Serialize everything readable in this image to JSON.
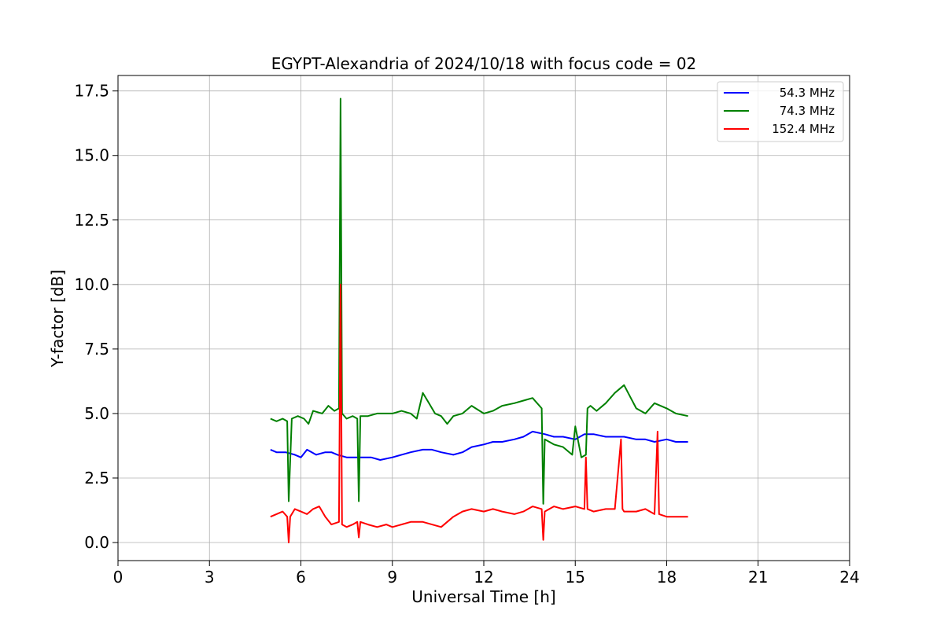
{
  "chart_data": {
    "type": "line",
    "title": "EGYPT-Alexandria of 2024/10/18 with focus code = 02",
    "xlabel": "Universal Time [h]",
    "ylabel": "Y-factor [dB]",
    "xlim": [
      0,
      24
    ],
    "ylim": [
      -0.7,
      18.1
    ],
    "xticks": [
      0,
      3,
      6,
      9,
      12,
      15,
      18,
      21,
      24
    ],
    "xtick_labels": [
      "0",
      "3",
      "6",
      "9",
      "12",
      "15",
      "18",
      "21",
      "24"
    ],
    "yticks": [
      0,
      2.5,
      5,
      7.5,
      10,
      12.5,
      15,
      17.5
    ],
    "ytick_labels": [
      "0.0",
      "2.5",
      "5.0",
      "7.5",
      "10.0",
      "12.5",
      "15.0",
      "17.5"
    ],
    "grid": true,
    "legend_position": "top-right",
    "series": [
      {
        "name": "54.3 MHz",
        "color": "#0000ff",
        "x": [
          5.0,
          5.2,
          5.5,
          5.8,
          6.0,
          6.2,
          6.5,
          6.8,
          7.0,
          7.2,
          7.5,
          7.8,
          8.0,
          8.3,
          8.6,
          9.0,
          9.3,
          9.6,
          10.0,
          10.3,
          10.6,
          11.0,
          11.3,
          11.6,
          12.0,
          12.3,
          12.6,
          13.0,
          13.3,
          13.6,
          14.0,
          14.3,
          14.6,
          15.0,
          15.3,
          15.6,
          16.0,
          16.3,
          16.6,
          17.0,
          17.3,
          17.6,
          18.0,
          18.3,
          18.7
        ],
        "y": [
          3.6,
          3.5,
          3.5,
          3.4,
          3.3,
          3.6,
          3.4,
          3.5,
          3.5,
          3.4,
          3.3,
          3.3,
          3.3,
          3.3,
          3.2,
          3.3,
          3.4,
          3.5,
          3.6,
          3.6,
          3.5,
          3.4,
          3.5,
          3.7,
          3.8,
          3.9,
          3.9,
          4.0,
          4.1,
          4.3,
          4.2,
          4.1,
          4.1,
          4.0,
          4.2,
          4.2,
          4.1,
          4.1,
          4.1,
          4.0,
          4.0,
          3.9,
          4.0,
          3.9,
          3.9
        ]
      },
      {
        "name": "74.3 MHz",
        "color": "#008000",
        "x": [
          5.0,
          5.2,
          5.4,
          5.55,
          5.6,
          5.7,
          5.9,
          6.1,
          6.25,
          6.4,
          6.7,
          6.9,
          7.1,
          7.25,
          7.3,
          7.35,
          7.5,
          7.7,
          7.85,
          7.9,
          7.95,
          8.2,
          8.5,
          8.8,
          9.0,
          9.3,
          9.6,
          9.8,
          10.0,
          10.2,
          10.4,
          10.6,
          10.8,
          11.0,
          11.3,
          11.6,
          12.0,
          12.3,
          12.6,
          13.0,
          13.3,
          13.6,
          13.9,
          13.95,
          14.0,
          14.3,
          14.6,
          14.9,
          15.0,
          15.2,
          15.35,
          15.4,
          15.5,
          15.7,
          16.0,
          16.3,
          16.6,
          17.0,
          17.3,
          17.6,
          18.0,
          18.3,
          18.7
        ],
        "y": [
          4.8,
          4.7,
          4.8,
          4.7,
          1.6,
          4.8,
          4.9,
          4.8,
          4.6,
          5.1,
          5.0,
          5.3,
          5.1,
          5.2,
          17.2,
          5.0,
          4.8,
          4.9,
          4.8,
          1.6,
          4.9,
          4.9,
          5.0,
          5.0,
          5.0,
          5.1,
          5.0,
          4.8,
          5.8,
          5.4,
          5.0,
          4.9,
          4.6,
          4.9,
          5.0,
          5.3,
          5.0,
          5.1,
          5.3,
          5.4,
          5.5,
          5.6,
          5.2,
          1.5,
          4.0,
          3.8,
          3.7,
          3.4,
          4.5,
          3.3,
          3.4,
          5.2,
          5.3,
          5.1,
          5.4,
          5.8,
          6.1,
          5.2,
          5.0,
          5.4,
          5.2,
          5.0,
          4.9
        ]
      },
      {
        "name": "152.4 MHz",
        "color": "#ff0000",
        "x": [
          5.0,
          5.2,
          5.4,
          5.55,
          5.6,
          5.65,
          5.8,
          6.0,
          6.2,
          6.4,
          6.6,
          6.8,
          7.0,
          7.25,
          7.3,
          7.35,
          7.5,
          7.7,
          7.85,
          7.9,
          7.95,
          8.2,
          8.5,
          8.8,
          9.0,
          9.3,
          9.6,
          10.0,
          10.3,
          10.6,
          11.0,
          11.3,
          11.6,
          12.0,
          12.3,
          12.6,
          13.0,
          13.3,
          13.6,
          13.9,
          13.95,
          14.0,
          14.3,
          14.6,
          15.0,
          15.3,
          15.35,
          15.4,
          15.6,
          16.0,
          16.3,
          16.5,
          16.55,
          16.6,
          17.0,
          17.3,
          17.6,
          17.7,
          17.75,
          18.0,
          18.3,
          18.7
        ],
        "y": [
          1.0,
          1.1,
          1.2,
          1.0,
          0.0,
          1.0,
          1.3,
          1.2,
          1.1,
          1.3,
          1.4,
          1.0,
          0.7,
          0.8,
          10.0,
          0.7,
          0.6,
          0.7,
          0.8,
          0.2,
          0.8,
          0.7,
          0.6,
          0.7,
          0.6,
          0.7,
          0.8,
          0.8,
          0.7,
          0.6,
          1.0,
          1.2,
          1.3,
          1.2,
          1.3,
          1.2,
          1.1,
          1.2,
          1.4,
          1.3,
          0.1,
          1.2,
          1.4,
          1.3,
          1.4,
          1.3,
          3.3,
          1.3,
          1.2,
          1.3,
          1.3,
          4.0,
          1.3,
          1.2,
          1.2,
          1.3,
          1.1,
          4.3,
          1.1,
          1.0,
          1.0,
          1.0
        ]
      }
    ]
  }
}
